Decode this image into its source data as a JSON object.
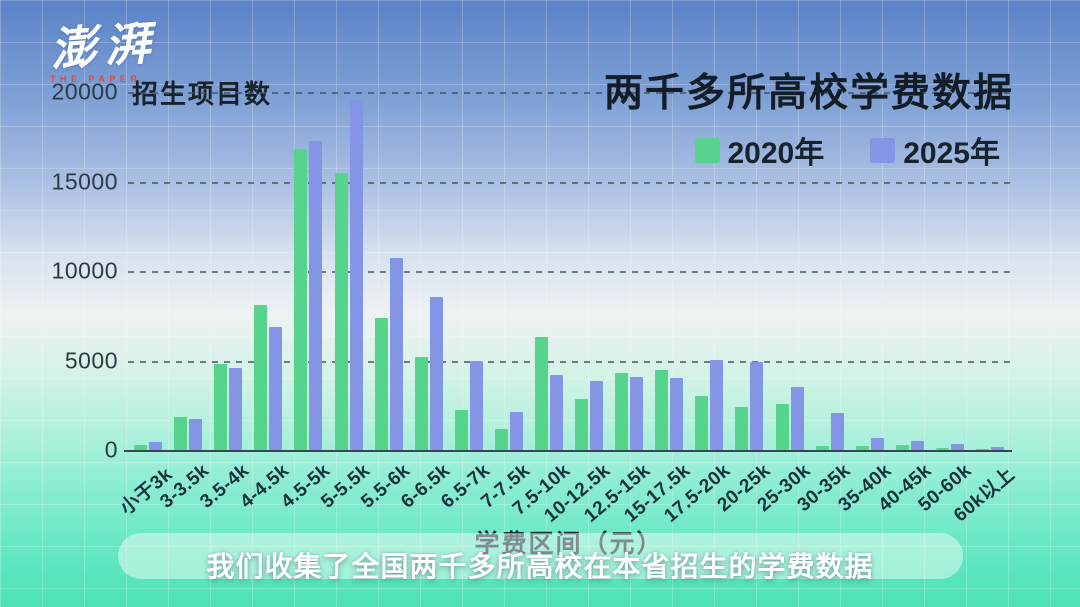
{
  "logo": {
    "brand": "澎湃",
    "sub": "THE PAPER"
  },
  "caption": "我们收集了全国两千多所高校在本省招生的学费数据",
  "chart_data": {
    "type": "bar",
    "title": "两千多所高校学费数据",
    "ylabel": "招生项目数",
    "xlabel": "学费区间（元）",
    "ylim": [
      0,
      20000
    ],
    "yticks": [
      0,
      5000,
      10000,
      15000,
      20000
    ],
    "grid": "horizontal dashed",
    "legend_position": "top-right",
    "categories": [
      "小于3k",
      "3-3.5k",
      "3.5-4k",
      "4-4.5k",
      "4.5-5k",
      "5-5.5k",
      "5.5-6k",
      "6-6.5k",
      "6.5-7k",
      "7-7.5k",
      "7.5-10k",
      "10-12.5k",
      "12.5-15k",
      "15-17.5k",
      "17.5-20k",
      "20-25k",
      "25-30k",
      "30-35k",
      "35-40k",
      "40-45k",
      "50-60k",
      "60k以上"
    ],
    "series": [
      {
        "name": "2020年",
        "color": "#56d48e",
        "values": [
          300,
          1850,
          4800,
          8100,
          16800,
          15500,
          7400,
          5200,
          2250,
          1200,
          6300,
          2850,
          4300,
          4450,
          3000,
          2400,
          2550,
          250,
          200,
          280,
          100,
          60
        ]
      },
      {
        "name": "2025年",
        "color": "#8495e6",
        "values": [
          450,
          1750,
          4600,
          6850,
          17250,
          19550,
          10700,
          8550,
          4950,
          2100,
          4200,
          3850,
          4100,
          4050,
          5050,
          4900,
          3500,
          2050,
          650,
          500,
          350,
          160
        ]
      }
    ]
  }
}
